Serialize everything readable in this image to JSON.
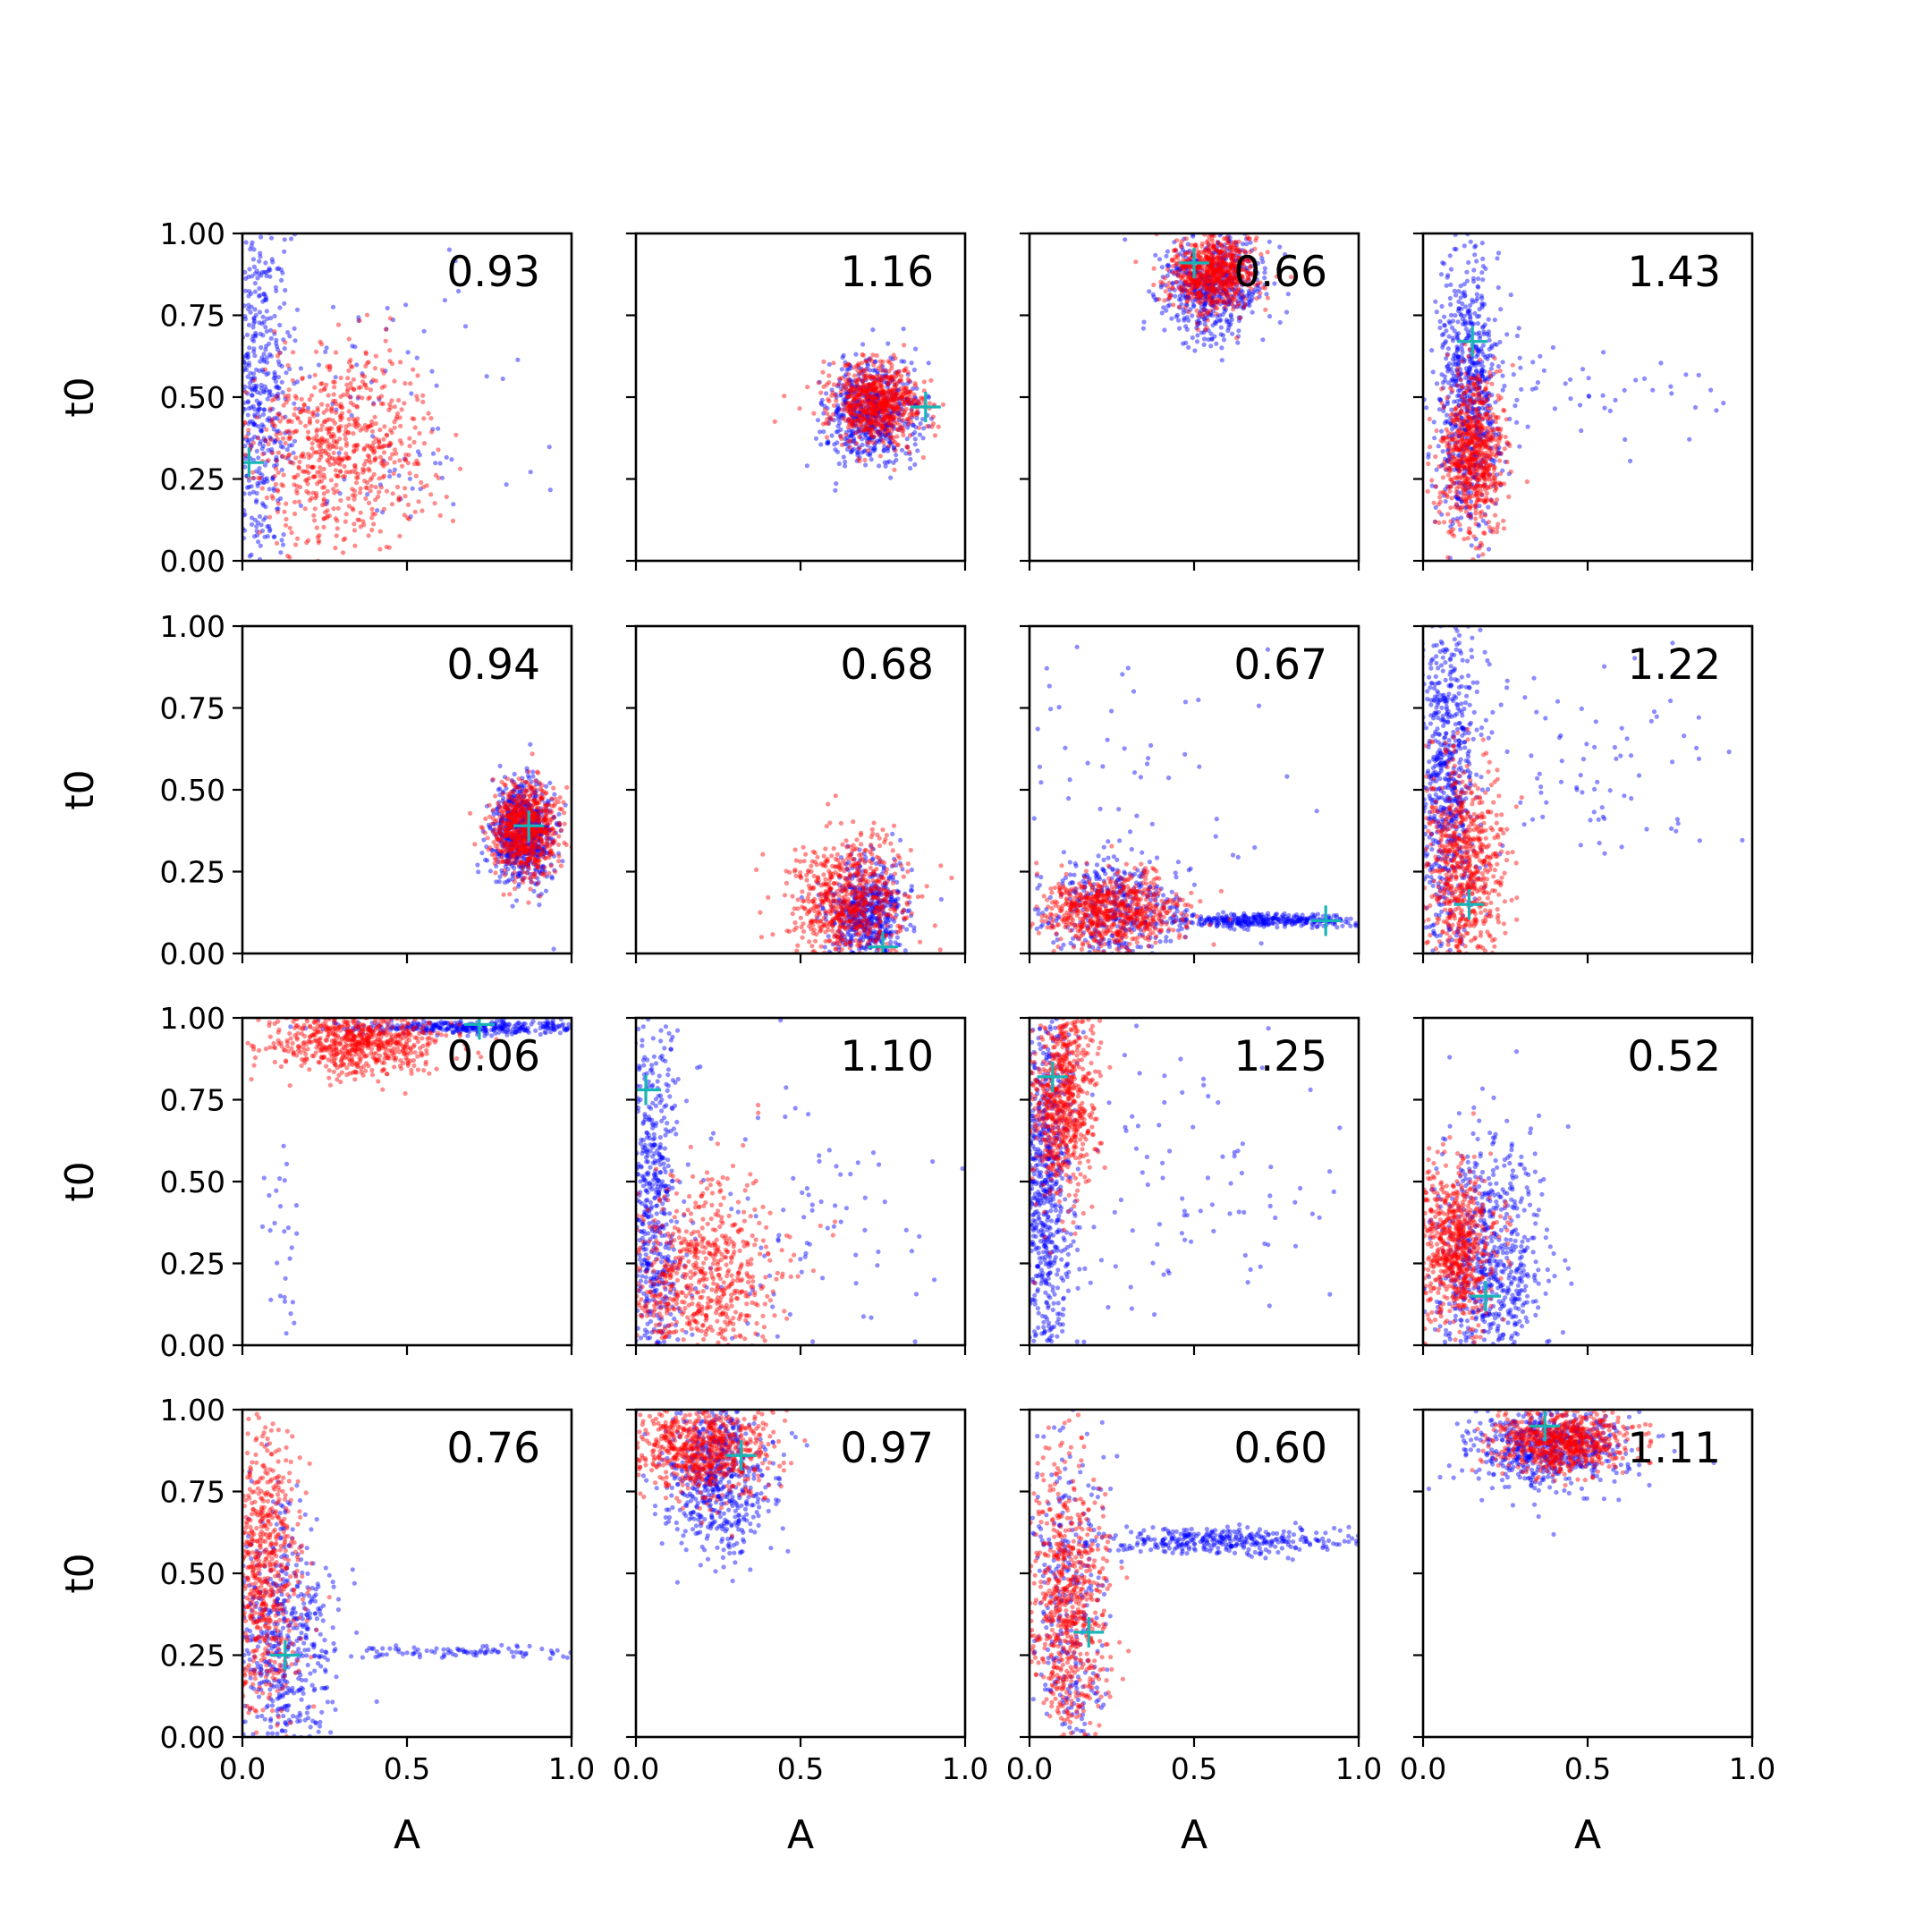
{
  "colors": {
    "background": "#ffffff",
    "series_a": "#0000ff",
    "series_b": "#ff0000",
    "marker": "#17b5b5"
  },
  "chart_data": {
    "type": "scatter",
    "layout": "4x4 grid of scatter panels",
    "xlabel": "A",
    "ylabel": "t0",
    "xlim": [
      0,
      1
    ],
    "ylim": [
      0,
      1
    ],
    "xticks": [
      "0.0",
      "0.5",
      "1.0"
    ],
    "yticks": [
      "0.00",
      "0.25",
      "0.50",
      "0.75",
      "1.00"
    ],
    "grid": false,
    "series_colors": [
      "blue",
      "red"
    ],
    "marker_color": "cyan",
    "panels": [
      {
        "value": "0.93",
        "marker": [
          0.02,
          0.3
        ],
        "clouds": [
          {
            "color": "blue",
            "n": 500,
            "cx": 0.05,
            "cy": 0.5,
            "sx": 0.05,
            "sy": 0.3
          },
          {
            "color": "blue",
            "n": 100,
            "cx": 0.4,
            "cy": 0.45,
            "sx": 0.25,
            "sy": 0.25
          },
          {
            "color": "red",
            "n": 700,
            "cx": 0.3,
            "cy": 0.35,
            "sx": 0.14,
            "sy": 0.15
          }
        ]
      },
      {
        "value": "1.16",
        "marker": [
          0.88,
          0.47
        ],
        "clouds": [
          {
            "color": "blue",
            "n": 600,
            "cx": 0.72,
            "cy": 0.45,
            "sx": 0.07,
            "sy": 0.08
          },
          {
            "color": "red",
            "n": 700,
            "cx": 0.73,
            "cy": 0.48,
            "sx": 0.07,
            "sy": 0.06
          }
        ]
      },
      {
        "value": "0.66",
        "marker": [
          0.5,
          0.91
        ],
        "clouds": [
          {
            "color": "blue",
            "n": 600,
            "cx": 0.55,
            "cy": 0.84,
            "sx": 0.08,
            "sy": 0.08
          },
          {
            "color": "red",
            "n": 700,
            "cx": 0.56,
            "cy": 0.88,
            "sx": 0.07,
            "sy": 0.06
          }
        ]
      },
      {
        "value": "1.43",
        "marker": [
          0.15,
          0.67
        ],
        "clouds": [
          {
            "color": "blue",
            "n": 700,
            "cx": 0.14,
            "cy": 0.5,
            "sx": 0.05,
            "sy": 0.22
          },
          {
            "color": "blue",
            "n": 60,
            "cx": 0.45,
            "cy": 0.5,
            "sx": 0.25,
            "sy": 0.08
          },
          {
            "color": "red",
            "n": 700,
            "cx": 0.15,
            "cy": 0.33,
            "sx": 0.05,
            "sy": 0.12
          }
        ]
      },
      {
        "value": "0.94",
        "marker": [
          0.87,
          0.39
        ],
        "clouds": [
          {
            "color": "blue",
            "n": 700,
            "cx": 0.85,
            "cy": 0.37,
            "sx": 0.05,
            "sy": 0.08
          },
          {
            "color": "red",
            "n": 700,
            "cx": 0.86,
            "cy": 0.38,
            "sx": 0.05,
            "sy": 0.07
          }
        ]
      },
      {
        "value": "0.68",
        "marker": [
          0.75,
          0.02
        ],
        "clouds": [
          {
            "color": "blue",
            "n": 600,
            "cx": 0.7,
            "cy": 0.12,
            "sx": 0.06,
            "sy": 0.08
          },
          {
            "color": "red",
            "n": 700,
            "cx": 0.65,
            "cy": 0.16,
            "sx": 0.09,
            "sy": 0.1
          }
        ]
      },
      {
        "value": "0.67",
        "marker": [
          0.9,
          0.1
        ],
        "clouds": [
          {
            "color": "blue",
            "n": 400,
            "cx": 0.25,
            "cy": 0.14,
            "sx": 0.12,
            "sy": 0.08
          },
          {
            "color": "blue",
            "n": 350,
            "cx": 0.72,
            "cy": 0.1,
            "sx": 0.16,
            "sy": 0.01
          },
          {
            "color": "blue",
            "n": 50,
            "cx": 0.3,
            "cy": 0.55,
            "sx": 0.25,
            "sy": 0.25
          },
          {
            "color": "red",
            "n": 700,
            "cx": 0.25,
            "cy": 0.13,
            "sx": 0.1,
            "sy": 0.06
          }
        ]
      },
      {
        "value": "1.22",
        "marker": [
          0.14,
          0.15
        ],
        "clouds": [
          {
            "color": "blue",
            "n": 700,
            "cx": 0.07,
            "cy": 0.5,
            "sx": 0.05,
            "sy": 0.28
          },
          {
            "color": "blue",
            "n": 100,
            "cx": 0.45,
            "cy": 0.55,
            "sx": 0.25,
            "sy": 0.15
          },
          {
            "color": "red",
            "n": 700,
            "cx": 0.12,
            "cy": 0.25,
            "sx": 0.06,
            "sy": 0.16
          }
        ]
      },
      {
        "value": "0.06",
        "marker": [
          0.72,
          0.98
        ],
        "clouds": [
          {
            "color": "blue",
            "n": 350,
            "cx": 0.7,
            "cy": 0.97,
            "sx": 0.2,
            "sy": 0.01
          },
          {
            "color": "blue",
            "n": 30,
            "cx": 0.12,
            "cy": 0.3,
            "sx": 0.04,
            "sy": 0.2
          },
          {
            "color": "red",
            "n": 700,
            "cx": 0.35,
            "cy": 0.93,
            "sx": 0.13,
            "sy": 0.05
          }
        ]
      },
      {
        "value": "1.10",
        "marker": [
          0.03,
          0.78
        ],
        "clouds": [
          {
            "color": "blue",
            "n": 600,
            "cx": 0.05,
            "cy": 0.4,
            "sx": 0.04,
            "sy": 0.3
          },
          {
            "color": "blue",
            "n": 120,
            "cx": 0.45,
            "cy": 0.35,
            "sx": 0.28,
            "sy": 0.25
          },
          {
            "color": "red",
            "n": 700,
            "cx": 0.2,
            "cy": 0.2,
            "sx": 0.12,
            "sy": 0.15
          }
        ]
      },
      {
        "value": "1.25",
        "marker": [
          0.07,
          0.82
        ],
        "clouds": [
          {
            "color": "blue",
            "n": 700,
            "cx": 0.05,
            "cy": 0.5,
            "sx": 0.04,
            "sy": 0.3
          },
          {
            "color": "blue",
            "n": 120,
            "cx": 0.45,
            "cy": 0.5,
            "sx": 0.28,
            "sy": 0.25
          },
          {
            "color": "red",
            "n": 700,
            "cx": 0.1,
            "cy": 0.75,
            "sx": 0.05,
            "sy": 0.15
          }
        ]
      },
      {
        "value": "0.52",
        "marker": [
          0.19,
          0.15
        ],
        "clouds": [
          {
            "color": "blue",
            "n": 700,
            "cx": 0.2,
            "cy": 0.25,
            "sx": 0.08,
            "sy": 0.2
          },
          {
            "color": "red",
            "n": 700,
            "cx": 0.1,
            "cy": 0.3,
            "sx": 0.06,
            "sy": 0.13
          }
        ]
      },
      {
        "value": "0.76",
        "marker": [
          0.13,
          0.25
        ],
        "clouds": [
          {
            "color": "blue",
            "n": 600,
            "cx": 0.12,
            "cy": 0.25,
            "sx": 0.08,
            "sy": 0.22
          },
          {
            "color": "blue",
            "n": 100,
            "cx": 0.6,
            "cy": 0.26,
            "sx": 0.22,
            "sy": 0.01
          },
          {
            "color": "red",
            "n": 700,
            "cx": 0.06,
            "cy": 0.5,
            "sx": 0.06,
            "sy": 0.22
          }
        ]
      },
      {
        "value": "0.97",
        "marker": [
          0.32,
          0.86
        ],
        "clouds": [
          {
            "color": "blue",
            "n": 600,
            "cx": 0.25,
            "cy": 0.8,
            "sx": 0.08,
            "sy": 0.12
          },
          {
            "color": "red",
            "n": 700,
            "cx": 0.2,
            "cy": 0.88,
            "sx": 0.1,
            "sy": 0.07
          }
        ]
      },
      {
        "value": "0.60",
        "marker": [
          0.18,
          0.32
        ],
        "clouds": [
          {
            "color": "blue",
            "n": 300,
            "cx": 0.12,
            "cy": 0.4,
            "sx": 0.06,
            "sy": 0.25
          },
          {
            "color": "blue",
            "n": 350,
            "cx": 0.6,
            "cy": 0.6,
            "sx": 0.2,
            "sy": 0.02
          },
          {
            "color": "red",
            "n": 700,
            "cx": 0.12,
            "cy": 0.4,
            "sx": 0.06,
            "sy": 0.22
          }
        ]
      },
      {
        "value": "1.11",
        "marker": [
          0.37,
          0.95
        ],
        "clouds": [
          {
            "color": "blue",
            "n": 600,
            "cx": 0.38,
            "cy": 0.88,
            "sx": 0.12,
            "sy": 0.06
          },
          {
            "color": "red",
            "n": 700,
            "cx": 0.42,
            "cy": 0.9,
            "sx": 0.1,
            "sy": 0.05
          }
        ]
      }
    ]
  }
}
